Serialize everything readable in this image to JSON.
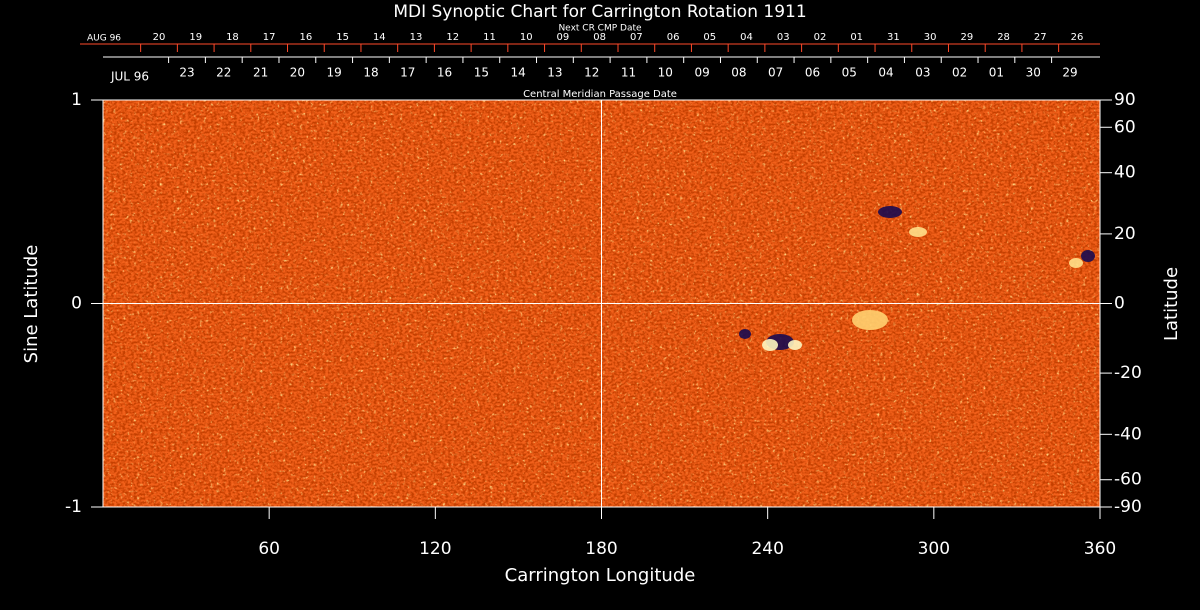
{
  "chart_data": {
    "type": "heatmap",
    "title": "MDI Synoptic Chart for Carrington Rotation 1911",
    "xlabel": "Carrington Longitude",
    "ylabel": "Sine Latitude",
    "y2label": "Latitude",
    "xlim": [
      0,
      360
    ],
    "xticks": [
      60,
      120,
      180,
      240,
      300,
      360
    ],
    "ylim": [
      -1,
      1
    ],
    "yticks": [
      -1,
      0,
      1
    ],
    "y2scale": "sine",
    "y2ticks": [
      90,
      60,
      40,
      20,
      0,
      -20,
      -40,
      -60,
      -90
    ],
    "crosshair_x": 180,
    "crosshair_y": 0,
    "top_axis_label": "Central Meridian Passage Date",
    "top_axis_start": "JUL 96",
    "top_axis_ticks": [
      "23",
      "22",
      "21",
      "20",
      "19",
      "18",
      "17",
      "16",
      "15",
      "14",
      "13",
      "12",
      "11",
      "10",
      "09",
      "08",
      "07",
      "06",
      "05",
      "04",
      "03",
      "02",
      "01",
      "30",
      "29"
    ],
    "top2_axis_label": "Next CR CMP Date",
    "top2_axis_start": "AUG 96",
    "top2_axis_ticks": [
      "20",
      "19",
      "18",
      "17",
      "16",
      "15",
      "14",
      "13",
      "12",
      "11",
      "10",
      "09",
      "08",
      "07",
      "06",
      "05",
      "04",
      "03",
      "02",
      "01",
      "31",
      "30",
      "29",
      "28",
      "27",
      "26"
    ],
    "top2_color": "#ff4a2a",
    "map_color": "#f2601a"
  }
}
